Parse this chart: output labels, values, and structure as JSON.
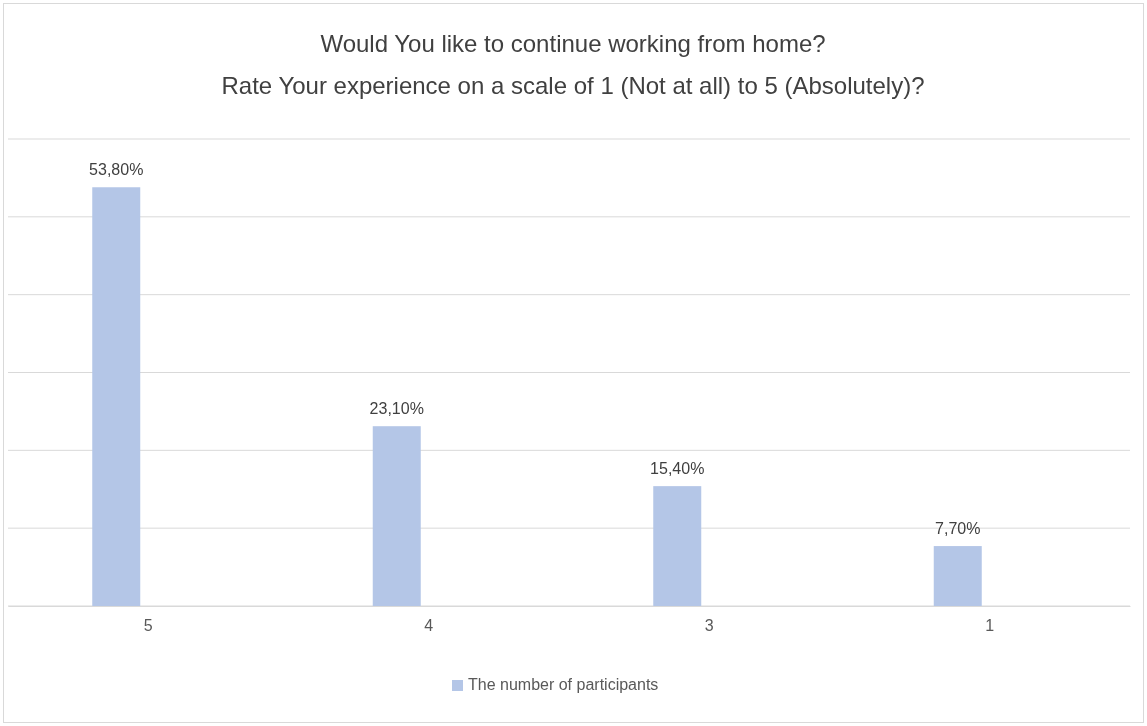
{
  "chart_data": {
    "type": "bar",
    "title": "Would You like to continue working from home?",
    "subtitle": "Rate Your experience on a scale of 1 (Not at all) to 5 (Absolutely)?",
    "categories": [
      "5",
      "4",
      "3",
      "1"
    ],
    "series": [
      {
        "name": "The number of participants",
        "color": "#b4c6e7",
        "values": [
          53.8,
          23.1,
          15.4,
          7.7
        ],
        "value_labels": [
          "53,80%",
          "23,10%",
          "15,40%",
          "7,70%"
        ]
      }
    ],
    "ylim": [
      0,
      60
    ],
    "yticks": [
      {
        "value": 0,
        "label": null
      },
      {
        "value": 10,
        "label": null
      },
      {
        "value": 20,
        "label": null
      },
      {
        "value": 30,
        "label": null
      },
      {
        "value": 40,
        "label": null
      },
      {
        "value": 50,
        "label": null
      },
      {
        "value": 60,
        "label": null
      }
    ],
    "grid": "y",
    "tick_labels": "x",
    "legend": "bottom"
  }
}
